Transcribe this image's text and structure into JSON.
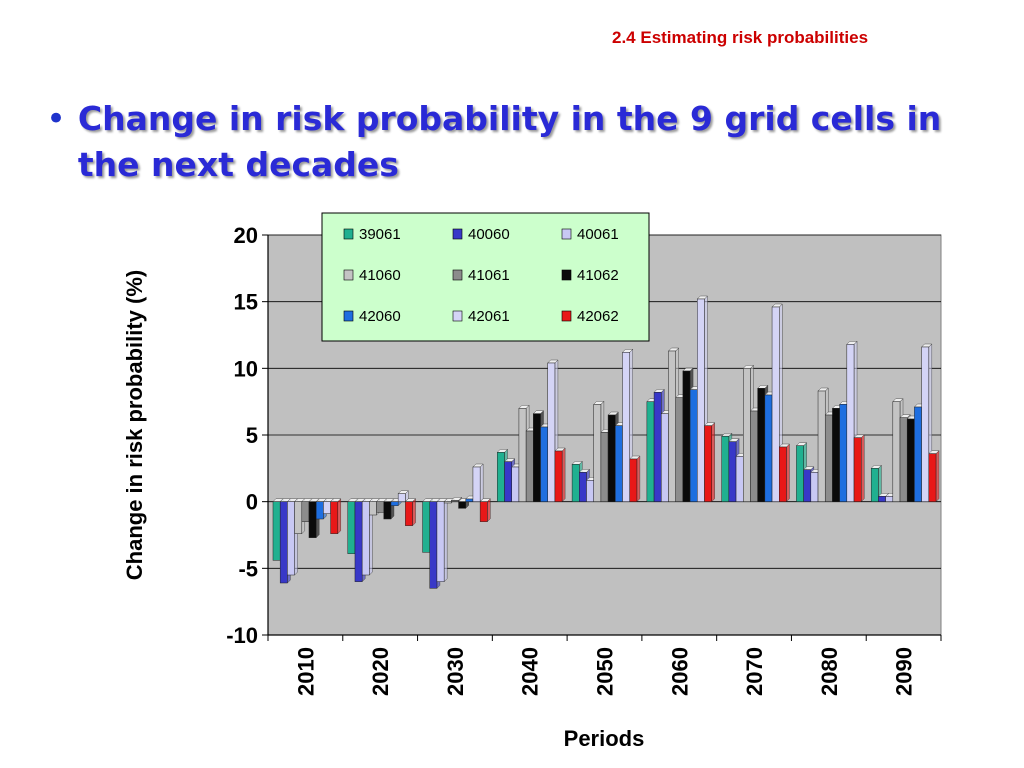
{
  "slide": {
    "section_tag": "2.4 Estimating risk probabilities",
    "bullet": "Change in risk probability in the 9 grid cells in the next decades"
  },
  "chart_data": {
    "type": "bar",
    "xlabel": "Periods",
    "ylabel": "Change in risk probability (%)",
    "ylim": [
      -10,
      20
    ],
    "yticks": [
      -10,
      -5,
      0,
      5,
      10,
      15,
      20
    ],
    "grid": true,
    "legend_position": "top-center",
    "categories": [
      "2010",
      "2020",
      "2030",
      "2040",
      "2050",
      "2060",
      "2070",
      "2080",
      "2090"
    ],
    "series": [
      {
        "name": "39061",
        "color": "#20b090",
        "values": [
          -4.4,
          -3.9,
          -3.8,
          3.7,
          2.8,
          7.5,
          4.9,
          4.2,
          2.5
        ]
      },
      {
        "name": "40060",
        "color": "#3838c8",
        "values": [
          -6.1,
          -6.0,
          -6.5,
          3.0,
          2.2,
          8.2,
          4.5,
          2.4,
          0.4
        ]
      },
      {
        "name": "40061",
        "color": "#c8c8f4",
        "values": [
          -5.5,
          -5.5,
          -6.0,
          2.6,
          1.6,
          6.6,
          3.4,
          2.2,
          0.4
        ]
      },
      {
        "name": "41060",
        "color": "#c4c4c4",
        "values": [
          -2.4,
          -1.0,
          -0.1,
          7.0,
          7.3,
          11.3,
          10.0,
          8.3,
          7.5
        ]
      },
      {
        "name": "41061",
        "color": "#8c8c8c",
        "values": [
          -1.5,
          -0.8,
          0.1,
          5.3,
          5.2,
          7.8,
          6.8,
          6.5,
          6.3
        ]
      },
      {
        "name": "41062",
        "color": "#0a0a0a",
        "values": [
          -2.7,
          -1.3,
          -0.5,
          6.6,
          6.5,
          9.8,
          8.5,
          7.0,
          6.2
        ]
      },
      {
        "name": "42060",
        "color": "#1e6ee0",
        "values": [
          -1.3,
          -0.3,
          0.2,
          5.6,
          5.7,
          8.4,
          8.0,
          7.3,
          7.1
        ]
      },
      {
        "name": "42061",
        "color": "#d4d4f6",
        "values": [
          -0.9,
          0.6,
          2.6,
          10.4,
          11.2,
          15.2,
          14.6,
          11.8,
          11.6
        ]
      },
      {
        "name": "42062",
        "color": "#e81818",
        "values": [
          -2.4,
          -1.8,
          -1.5,
          3.8,
          3.2,
          5.7,
          4.1,
          4.8,
          3.6
        ]
      }
    ]
  }
}
